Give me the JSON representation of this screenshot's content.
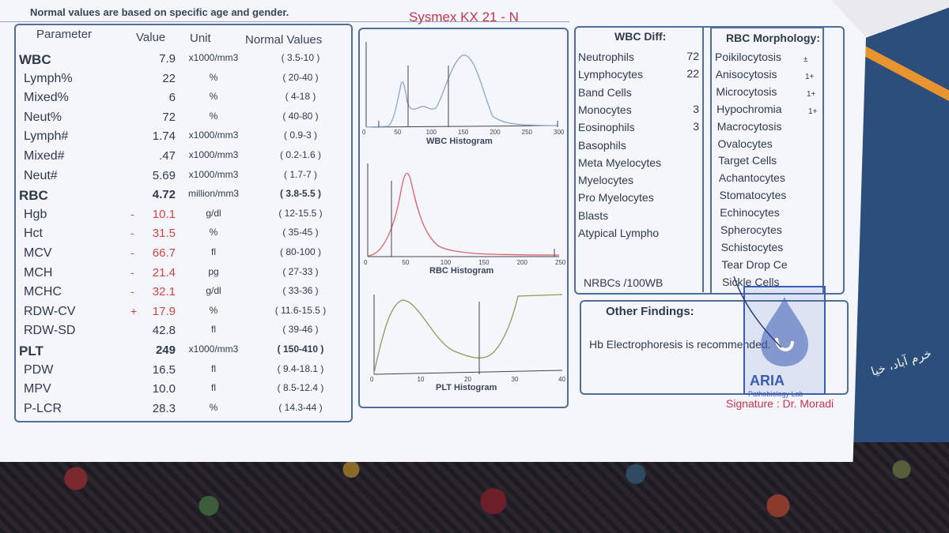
{
  "header": {
    "note": "Normal values are based on specific age and gender.",
    "instrument": "Sysmex KX 21 - N"
  },
  "table": {
    "columns": [
      "Parameter",
      "Value",
      "Unit",
      "Normal Values"
    ],
    "rows": [
      {
        "param": "WBC",
        "value": "7.9",
        "unit": "x1000/mm3",
        "normal": "( 3.5-10 )",
        "major": true,
        "bold": false,
        "flag": ""
      },
      {
        "param": "Lymph%",
        "value": "22",
        "unit": "%",
        "normal": "( 20-40 )",
        "major": false,
        "bold": false,
        "flag": ""
      },
      {
        "param": "Mixed%",
        "value": "6",
        "unit": "%",
        "normal": "( 4-18 )",
        "major": false,
        "bold": false,
        "flag": ""
      },
      {
        "param": "Neut%",
        "value": "72",
        "unit": "%",
        "normal": "( 40-80 )",
        "major": false,
        "bold": false,
        "flag": ""
      },
      {
        "param": "Lymph#",
        "value": "1.74",
        "unit": "x1000/mm3",
        "normal": "( 0.9-3 )",
        "major": false,
        "bold": false,
        "flag": ""
      },
      {
        "param": "Mixed#",
        "value": ".47",
        "unit": "x1000/mm3",
        "normal": "( 0.2-1.6 )",
        "major": false,
        "bold": false,
        "flag": ""
      },
      {
        "param": "Neut#",
        "value": "5.69",
        "unit": "x1000/mm3",
        "normal": "( 1.7-7 )",
        "major": false,
        "bold": false,
        "flag": ""
      },
      {
        "param": "RBC",
        "value": "4.72",
        "unit": "million/mm3",
        "normal": "( 3.8-5.5 )",
        "major": true,
        "bold": true,
        "flag": ""
      },
      {
        "param": "Hgb",
        "value": "10.1",
        "unit": "g/dl",
        "normal": "( 12-15.5 )",
        "major": false,
        "bold": false,
        "flag": "-"
      },
      {
        "param": "Hct",
        "value": "31.5",
        "unit": "%",
        "normal": "( 35-45 )",
        "major": false,
        "bold": false,
        "flag": "-"
      },
      {
        "param": "MCV",
        "value": "66.7",
        "unit": "fl",
        "normal": "( 80-100 )",
        "major": false,
        "bold": false,
        "flag": "-"
      },
      {
        "param": "MCH",
        "value": "21.4",
        "unit": "pg",
        "normal": "( 27-33 )",
        "major": false,
        "bold": false,
        "flag": "-"
      },
      {
        "param": "MCHC",
        "value": "32.1",
        "unit": "g/dl",
        "normal": "( 33-36 )",
        "major": false,
        "bold": false,
        "flag": "-"
      },
      {
        "param": "RDW-CV",
        "value": "17.9",
        "unit": "%",
        "normal": "( 11.6-15.5 )",
        "major": false,
        "bold": false,
        "flag": "+"
      },
      {
        "param": "RDW-SD",
        "value": "42.8",
        "unit": "fl",
        "normal": "( 39-46 )",
        "major": false,
        "bold": false,
        "flag": ""
      },
      {
        "param": "PLT",
        "value": "249",
        "unit": "x1000/mm3",
        "normal": "( 150-410 )",
        "major": true,
        "bold": true,
        "flag": ""
      },
      {
        "param": "PDW",
        "value": "16.5",
        "unit": "fl",
        "normal": "( 9.4-18.1 )",
        "major": false,
        "bold": false,
        "flag": ""
      },
      {
        "param": "MPV",
        "value": "10.0",
        "unit": "fl",
        "normal": "( 8.5-12.4 )",
        "major": false,
        "bold": false,
        "flag": ""
      },
      {
        "param": "P-LCR",
        "value": "28.3",
        "unit": "%",
        "normal": "( 14.3-44 )",
        "major": false,
        "bold": false,
        "flag": ""
      }
    ]
  },
  "histograms": {
    "wbc": {
      "title": "WBC Histogram",
      "ticks": [
        "0",
        "50",
        "100",
        "150",
        "200",
        "250",
        "300"
      ],
      "color": "#8aa7c8"
    },
    "rbc": {
      "title": "RBC Histogram",
      "ticks": [
        "0",
        "50",
        "100",
        "150",
        "200",
        "250"
      ],
      "color": "#d9646b"
    },
    "plt": {
      "title": "PLT Histogram",
      "ticks": [
        "0",
        "10",
        "20",
        "30",
        "40"
      ],
      "color": "#8f9a5a"
    }
  },
  "wbc_diff": {
    "title": "WBC Diff:",
    "items": [
      {
        "label": "Neutrophils",
        "value": "72"
      },
      {
        "label": "Lymphocytes",
        "value": "22"
      },
      {
        "label": "Band Cells",
        "value": ""
      },
      {
        "label": "Monocytes",
        "value": "3"
      },
      {
        "label": "Eosinophils",
        "value": "3"
      },
      {
        "label": "Basophils",
        "value": ""
      },
      {
        "label": "Meta Myelocytes",
        "value": ""
      },
      {
        "label": "Myelocytes",
        "value": ""
      },
      {
        "label": "Pro Myelocytes",
        "value": ""
      },
      {
        "label": "Blasts",
        "value": ""
      },
      {
        "label": "Atypical Lympho",
        "value": ""
      }
    ],
    "nrbc_label": "NRBCs /100WB"
  },
  "rbc_morphology": {
    "title": "RBC Morphology:",
    "items": [
      {
        "label": "Poikilocytosis",
        "grade": "±"
      },
      {
        "label": "Anisocytosis",
        "grade": "1+"
      },
      {
        "label": "Microcytosis",
        "grade": "1+"
      },
      {
        "label": "Hypochromia",
        "grade": "1+"
      },
      {
        "label": "Macrocytosis",
        "grade": ""
      },
      {
        "label": "Ovalocytes",
        "grade": ""
      },
      {
        "label": "Target Cells",
        "grade": ""
      },
      {
        "label": "Achantocytes",
        "grade": ""
      },
      {
        "label": "Stomatocytes",
        "grade": ""
      },
      {
        "label": "Echinocytes",
        "grade": ""
      },
      {
        "label": "Spherocytes",
        "grade": ""
      },
      {
        "label": "Schistocytes",
        "grade": ""
      },
      {
        "label": "Tear Drop Ce",
        "grade": ""
      },
      {
        "label": "Sickle Cells",
        "grade": ""
      }
    ]
  },
  "other_findings": {
    "title": "Other Findings:",
    "text": "Hb Electrophoresis is recommended."
  },
  "stamp": {
    "name": "ARIA",
    "line2": "Pathobiology Lab",
    "color": "#3b5bb5"
  },
  "signature": {
    "text": "Signature : Dr. Moradi"
  },
  "folder_text": "خرم آباد، خیا"
}
